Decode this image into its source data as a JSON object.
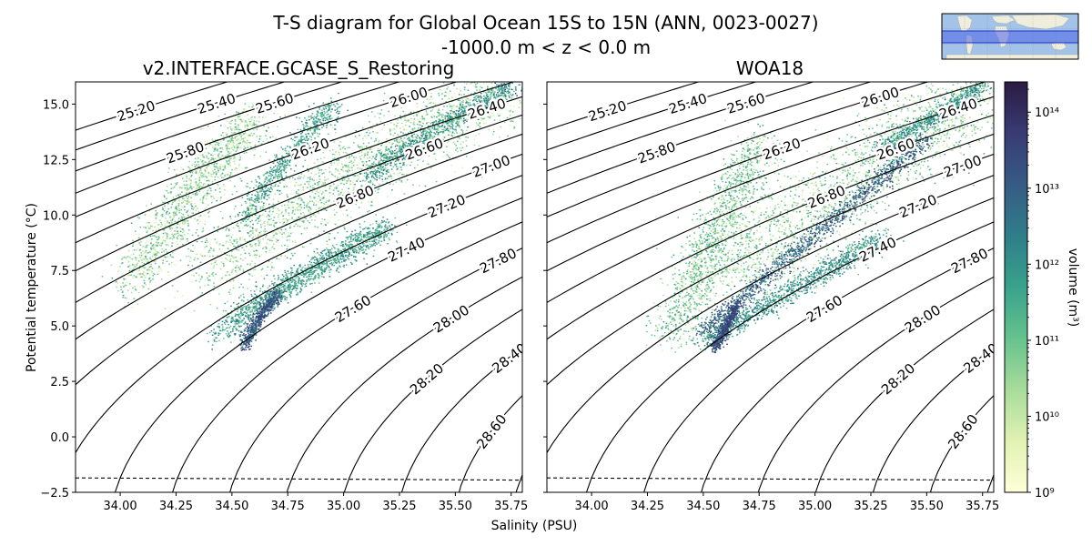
{
  "figure": {
    "title_line1": "T-S diagram for Global Ocean 15S to 15N (ANN, 0023-0027)",
    "title_line2": "-1000.0 m < z < 0.0 m"
  },
  "chart_data": {
    "type": "heatmap",
    "subtype": "T-S volumetric histogram with density contours",
    "xlabel": "Salinity (PSU)",
    "ylabel": "Potential temperature (°C)",
    "xlim": [
      33.8,
      35.8
    ],
    "ylim": [
      -2.5,
      16.0
    ],
    "xticks": [
      34.0,
      34.25,
      34.5,
      34.75,
      35.0,
      35.25,
      35.5,
      35.75
    ],
    "xtick_labels": [
      "34.00",
      "34.25",
      "34.50",
      "34.75",
      "35.00",
      "35.25",
      "35.50",
      "35.75"
    ],
    "yticks": [
      -2.5,
      0.0,
      2.5,
      5.0,
      7.5,
      10.0,
      12.5,
      15.0
    ],
    "ytick_labels": [
      "−2.5",
      "0.0",
      "2.5",
      "5.0",
      "7.5",
      "10.0",
      "12.5",
      "15.0"
    ],
    "freezing_line": {
      "style": "dashed",
      "t_at_smin": -1.85,
      "t_at_smax": -1.95
    },
    "density_contours": {
      "levels": [
        25.2,
        25.4,
        25.6,
        25.8,
        26.0,
        26.2,
        26.4,
        26.6,
        26.8,
        27.0,
        27.2,
        27.4,
        27.6,
        27.8,
        28.0,
        28.2,
        28.4,
        28.6,
        28.8
      ],
      "labeled_levels": [
        {
          "level": 25.2,
          "label": "25.20",
          "s": 34.07,
          "t": 15.5
        },
        {
          "level": 25.4,
          "label": "25.40",
          "s": 34.43,
          "t": 15.6
        },
        {
          "level": 25.6,
          "label": "25.60",
          "s": 34.69,
          "t": 15.6
        },
        {
          "level": 25.8,
          "label": "25.80",
          "s": 34.29,
          "t": 13.2
        },
        {
          "level": 26.0,
          "label": "26.00",
          "s": 35.29,
          "t": 15.4
        },
        {
          "level": 26.2,
          "label": "26.20",
          "s": 34.85,
          "t": 13.6
        },
        {
          "level": 26.4,
          "label": "26.40",
          "s": 35.64,
          "t": 15.0
        },
        {
          "level": 26.6,
          "label": "26.60",
          "s": 35.36,
          "t": 13.1
        },
        {
          "level": 26.8,
          "label": "26.80",
          "s": 35.05,
          "t": 11.1
        },
        {
          "level": 27.0,
          "label": "27.00",
          "s": 35.66,
          "t": 12.4
        },
        {
          "level": 27.2,
          "label": "27.20",
          "s": 35.46,
          "t": 10.8
        },
        {
          "level": 27.4,
          "label": "27.40",
          "s": 35.28,
          "t": 8.8
        },
        {
          "level": 27.6,
          "label": "27.60",
          "s": 35.04,
          "t": 6.9
        },
        {
          "level": 27.8,
          "label": "27.80",
          "s": 35.69,
          "t": 8.3
        },
        {
          "level": 28.0,
          "label": "28.00",
          "s": 35.48,
          "t": 5.8
        },
        {
          "level": 28.2,
          "label": "28.20",
          "s": 35.37,
          "t": 3.5
        },
        {
          "level": 28.4,
          "label": "28.40",
          "s": 35.74,
          "t": 3.7
        },
        {
          "level": 28.6,
          "label": "28.60",
          "s": 35.66,
          "t": 1.2
        }
      ]
    },
    "panels": [
      {
        "title": "v2.INTERFACE.GCASE_S_Restoring",
        "clusters": [
          {
            "s0": 34.4,
            "s1": 35.7,
            "t0": 7.0,
            "t1": 15.8,
            "spread": 0.35,
            "n": 2200,
            "w": 0.35
          },
          {
            "s0": 34.05,
            "s1": 34.6,
            "t0": 6.5,
            "t1": 14.5,
            "spread": 0.2,
            "n": 1400,
            "w": 0.35
          },
          {
            "s0": 34.45,
            "s1": 35.2,
            "t0": 4.5,
            "t1": 9.5,
            "spread": 0.12,
            "n": 1500,
            "w": 0.55
          },
          {
            "s0": 34.55,
            "s1": 34.95,
            "t0": 9.5,
            "t1": 15.0,
            "spread": 0.1,
            "n": 700,
            "w": 0.55
          },
          {
            "s0": 35.1,
            "s1": 35.75,
            "t0": 11.5,
            "t1": 15.8,
            "spread": 0.1,
            "n": 900,
            "w": 0.6
          },
          {
            "s0": 34.55,
            "s1": 34.7,
            "t0": 4.0,
            "t1": 6.5,
            "spread": 0.05,
            "n": 600,
            "w": 0.85
          }
        ]
      },
      {
        "title": "WOA18",
        "clusters": [
          {
            "s0": 34.55,
            "s1": 35.75,
            "t0": 7.0,
            "t1": 15.8,
            "spread": 0.4,
            "n": 2200,
            "w": 0.35
          },
          {
            "s0": 34.35,
            "s1": 34.75,
            "t0": 4.5,
            "t1": 13.5,
            "spread": 0.18,
            "n": 1300,
            "w": 0.4
          },
          {
            "s0": 34.5,
            "s1": 35.5,
            "t0": 4.8,
            "t1": 13.5,
            "spread": 0.08,
            "n": 1200,
            "w": 0.8
          },
          {
            "s0": 34.5,
            "s1": 35.3,
            "t0": 4.3,
            "t1": 9.0,
            "spread": 0.1,
            "n": 1200,
            "w": 0.6
          },
          {
            "s0": 35.3,
            "s1": 35.75,
            "t0": 13.0,
            "t1": 15.8,
            "spread": 0.08,
            "n": 700,
            "w": 0.6
          },
          {
            "s0": 34.55,
            "s1": 34.65,
            "t0": 4.0,
            "t1": 6.0,
            "spread": 0.04,
            "n": 500,
            "w": 0.9
          }
        ]
      }
    ],
    "colorbar": {
      "label": "volume (m³)",
      "scale": "log",
      "range": [
        1000000000.0,
        250000000000000.0
      ],
      "ticks": [
        {
          "value": 1000000000.0,
          "label": "10⁹"
        },
        {
          "value": 10000000000.0,
          "label": "10¹⁰"
        },
        {
          "value": 100000000000.0,
          "label": "10¹¹"
        },
        {
          "value": 1000000000000.0,
          "label": "10¹²"
        },
        {
          "value": 10000000000000.0,
          "label": "10¹³"
        },
        {
          "value": 100000000000000.0,
          "label": "10¹⁴"
        }
      ],
      "colors": [
        "#ffffd9",
        "#e2f3b3",
        "#a8dc9a",
        "#63c18d",
        "#38a28c",
        "#2f7f89",
        "#365b85",
        "#383a72",
        "#2b1b43"
      ]
    },
    "inset_map": {
      "description_region": "15S to 15N band highlighted",
      "ocean_color": "#a3c3e8",
      "land_color": "#efeedd",
      "band_color": "#4b63e6"
    }
  }
}
